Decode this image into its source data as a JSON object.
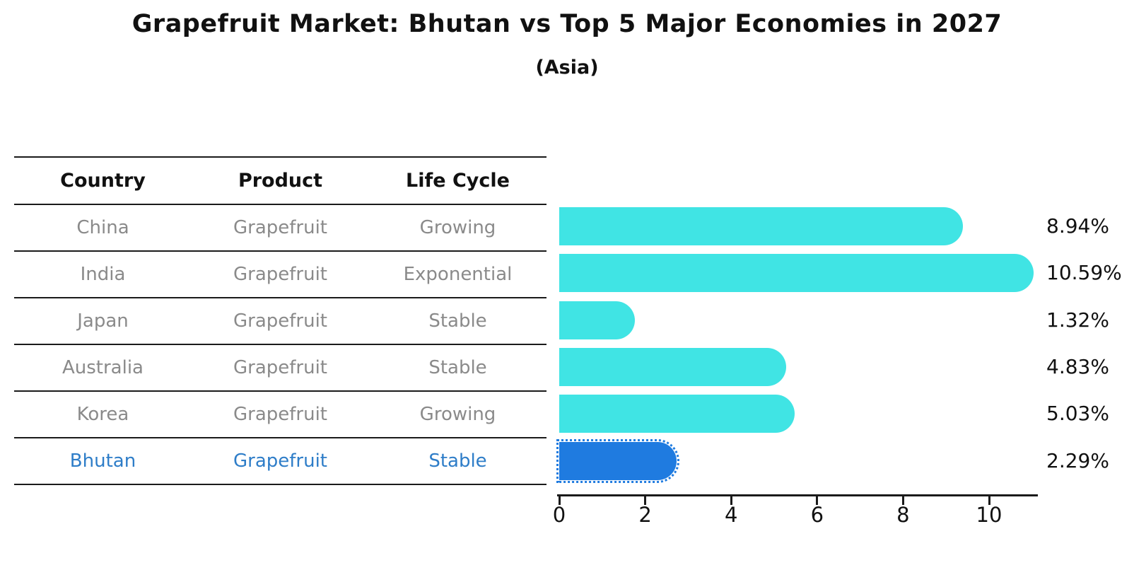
{
  "title": "Grapefruit Market: Bhutan vs Top 5 Major Economies in 2027",
  "subtitle": "(Asia)",
  "table": {
    "headers": [
      "Country",
      "Product",
      "Life Cycle"
    ],
    "rows": [
      {
        "country": "China",
        "product": "Grapefruit",
        "life_cycle": "Growing",
        "highlight": false
      },
      {
        "country": "India",
        "product": "Grapefruit",
        "life_cycle": "Exponential",
        "highlight": false
      },
      {
        "country": "Japan",
        "product": "Grapefruit",
        "life_cycle": "Stable",
        "highlight": false
      },
      {
        "country": "Australia",
        "product": "Grapefruit",
        "life_cycle": "Stable",
        "highlight": false
      },
      {
        "country": "Korea",
        "product": "Grapefruit",
        "life_cycle": "Growing",
        "highlight": false
      },
      {
        "country": "Bhutan",
        "product": "Grapefruit",
        "life_cycle": "Stable",
        "highlight": true
      }
    ]
  },
  "chart_data": {
    "type": "bar",
    "orientation": "horizontal",
    "title": "Grapefruit Market: Bhutan vs Top 5 Major Economies in 2027",
    "subtitle": "(Asia)",
    "categories": [
      "China",
      "India",
      "Japan",
      "Australia",
      "Korea",
      "Bhutan"
    ],
    "values": [
      8.94,
      10.59,
      1.32,
      4.83,
      5.03,
      2.29
    ],
    "value_labels": [
      "8.94%",
      "10.59%",
      "1.32%",
      "4.83%",
      "5.03%",
      "2.29%"
    ],
    "x_ticks": [
      0,
      2,
      4,
      6,
      8,
      10
    ],
    "xlim": [
      0,
      11.1
    ],
    "grid": false,
    "legend": false,
    "highlight_index": 5,
    "bar_color": "#40E4E4",
    "highlight_color": "#1F7BE0",
    "highlight_text_color": "#2e7dc8"
  }
}
